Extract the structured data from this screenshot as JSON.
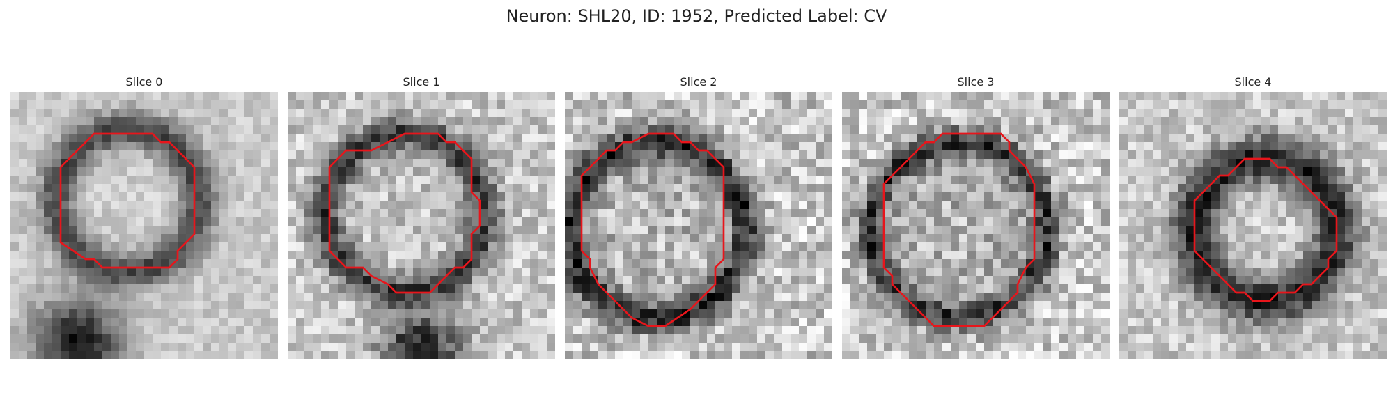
{
  "figure": {
    "title": "Neuron: SHL20, ID: 1952, Predicted Label: CV"
  },
  "contour_color": "#e8151b",
  "slices": [
    {
      "title": "Slice 0",
      "contour": [
        [
          14,
          5
        ],
        [
          17,
          5
        ],
        [
          18,
          6
        ],
        [
          19,
          6
        ],
        [
          22,
          9
        ],
        [
          22,
          17
        ],
        [
          20,
          19
        ],
        [
          20,
          20
        ],
        [
          19,
          21
        ],
        [
          11,
          21
        ],
        [
          10,
          20
        ],
        [
          9,
          20
        ],
        [
          6,
          18
        ],
        [
          6,
          9
        ],
        [
          10,
          5
        ]
      ],
      "image_description": "grayscale microscopy patch with a pale round vesicle surrounded by a darker ring"
    },
    {
      "title": "Slice 1",
      "contour": [
        [
          14,
          5
        ],
        [
          18,
          5
        ],
        [
          19,
          6
        ],
        [
          20,
          6
        ],
        [
          22,
          8
        ],
        [
          22,
          12
        ],
        [
          23,
          13
        ],
        [
          23,
          16
        ],
        [
          22,
          17
        ],
        [
          22,
          20
        ],
        [
          21,
          21
        ],
        [
          20,
          21
        ],
        [
          17,
          24
        ],
        [
          13,
          24
        ],
        [
          12,
          23
        ],
        [
          10,
          22
        ],
        [
          9,
          21
        ],
        [
          7,
          21
        ],
        [
          5,
          19
        ],
        [
          5,
          9
        ],
        [
          7,
          7
        ],
        [
          10,
          7
        ]
      ],
      "image_description": "grayscale microscopy patch with a round vesicle and darker membrane ring"
    },
    {
      "title": "Slice 2",
      "contour": [
        [
          10,
          5
        ],
        [
          13,
          5
        ],
        [
          14,
          6
        ],
        [
          15,
          6
        ],
        [
          16,
          7
        ],
        [
          17,
          7
        ],
        [
          18,
          8
        ],
        [
          19,
          9
        ],
        [
          19,
          14
        ],
        [
          19,
          20
        ],
        [
          18,
          21
        ],
        [
          18,
          23
        ],
        [
          16,
          25
        ],
        [
          15,
          26
        ],
        [
          12,
          28
        ],
        [
          10,
          28
        ],
        [
          8,
          27
        ],
        [
          7,
          26
        ],
        [
          6,
          25
        ],
        [
          4,
          23
        ],
        [
          3,
          21
        ],
        [
          3,
          20
        ],
        [
          2,
          19
        ],
        [
          2,
          10
        ],
        [
          3,
          9
        ],
        [
          4,
          8
        ],
        [
          5,
          7
        ],
        [
          6,
          7
        ],
        [
          7,
          6
        ],
        [
          8,
          6
        ]
      ],
      "image_description": "grayscale microscopy patch with a large round vesicle bounded by a dark ring"
    },
    {
      "title": "Slice 3",
      "contour": [
        [
          12,
          5
        ],
        [
          19,
          5
        ],
        [
          20,
          6
        ],
        [
          20,
          7
        ],
        [
          21,
          8
        ],
        [
          22,
          9
        ],
        [
          23,
          11
        ],
        [
          23,
          20
        ],
        [
          22,
          21
        ],
        [
          21,
          23
        ],
        [
          21,
          24
        ],
        [
          20,
          25
        ],
        [
          19,
          26
        ],
        [
          18,
          27
        ],
        [
          17,
          28
        ],
        [
          11,
          28
        ],
        [
          10,
          27
        ],
        [
          9,
          26
        ],
        [
          8,
          25
        ],
        [
          7,
          24
        ],
        [
          6,
          23
        ],
        [
          6,
          22
        ],
        [
          5,
          21
        ],
        [
          5,
          11
        ],
        [
          6,
          10
        ],
        [
          7,
          9
        ],
        [
          8,
          8
        ],
        [
          9,
          7
        ],
        [
          10,
          6
        ],
        [
          11,
          6
        ]
      ],
      "image_description": "grayscale microscopy patch with a round vesicle bounded by a dark ring"
    },
    {
      "title": "Slice 4",
      "contour": [
        [
          15,
          8
        ],
        [
          18,
          8
        ],
        [
          19,
          9
        ],
        [
          20,
          9
        ],
        [
          21,
          10
        ],
        [
          22,
          11
        ],
        [
          23,
          12
        ],
        [
          24,
          13
        ],
        [
          25,
          14
        ],
        [
          26,
          15
        ],
        [
          26,
          19
        ],
        [
          25,
          20
        ],
        [
          25,
          21
        ],
        [
          24,
          22
        ],
        [
          23,
          23
        ],
        [
          22,
          23
        ],
        [
          21,
          24
        ],
        [
          19,
          24
        ],
        [
          18,
          25
        ],
        [
          16,
          25
        ],
        [
          15,
          24
        ],
        [
          14,
          24
        ],
        [
          13,
          23
        ],
        [
          12,
          22
        ],
        [
          11,
          21
        ],
        [
          10,
          20
        ],
        [
          9,
          19
        ],
        [
          9,
          13
        ],
        [
          10,
          12
        ],
        [
          11,
          11
        ],
        [
          12,
          10
        ],
        [
          13,
          10
        ],
        [
          14,
          9
        ]
      ],
      "image_description": "grayscale microscopy patch with a smaller round vesicle and a dark thick ring"
    }
  ]
}
